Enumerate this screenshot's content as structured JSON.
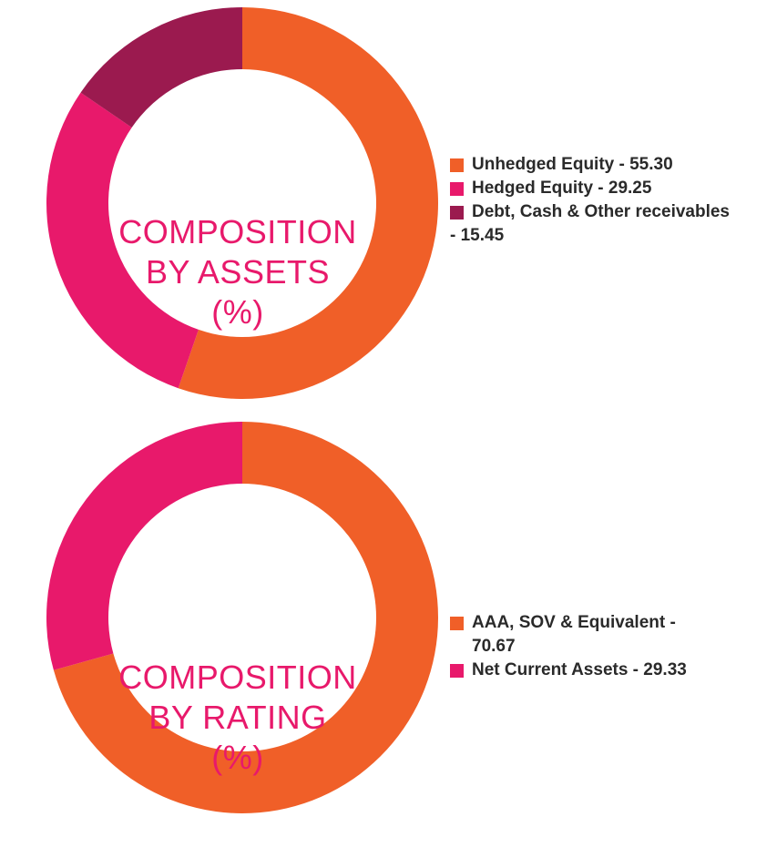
{
  "chart_data": [
    {
      "type": "pie",
      "variant": "donut",
      "title": "COMPOSITION BY ASSETS (%)",
      "title_lines": [
        "COMPOSITION",
        "BY ASSETS",
        "(%)"
      ],
      "legend_position": "right",
      "slices": [
        {
          "label": "Unhedged Equity - 55.30",
          "legend_lines": [
            "Unhedged Equity - 55.30"
          ],
          "value": 55.3,
          "color": "#f05f28"
        },
        {
          "label": "Hedged Equity - 29.25",
          "legend_lines": [
            "Hedged Equity - 29.25"
          ],
          "value": 29.25,
          "color": "#e8196b"
        },
        {
          "label": "Debt, Cash & Other receivables - 15.45",
          "legend_lines": [
            "Debt, Cash & Other receivables",
            "- 15.45"
          ],
          "value": 15.45,
          "color": "#9b1a4f"
        }
      ]
    },
    {
      "type": "pie",
      "variant": "donut",
      "title": "COMPOSITION BY RATING (%)",
      "title_lines": [
        "COMPOSITION",
        "BY RATING",
        "(%)"
      ],
      "legend_position": "right",
      "slices": [
        {
          "label": "AAA, SOV & Equivalent - 70.67",
          "legend_lines": [
            "AAA, SOV & Equivalent -",
            "70.67"
          ],
          "value": 70.67,
          "color": "#f05f28"
        },
        {
          "label": "Net Current Assets - 29.33",
          "legend_lines": [
            "Net Current Assets - 29.33"
          ],
          "value": 29.33,
          "color": "#e8196b"
        }
      ]
    }
  ]
}
